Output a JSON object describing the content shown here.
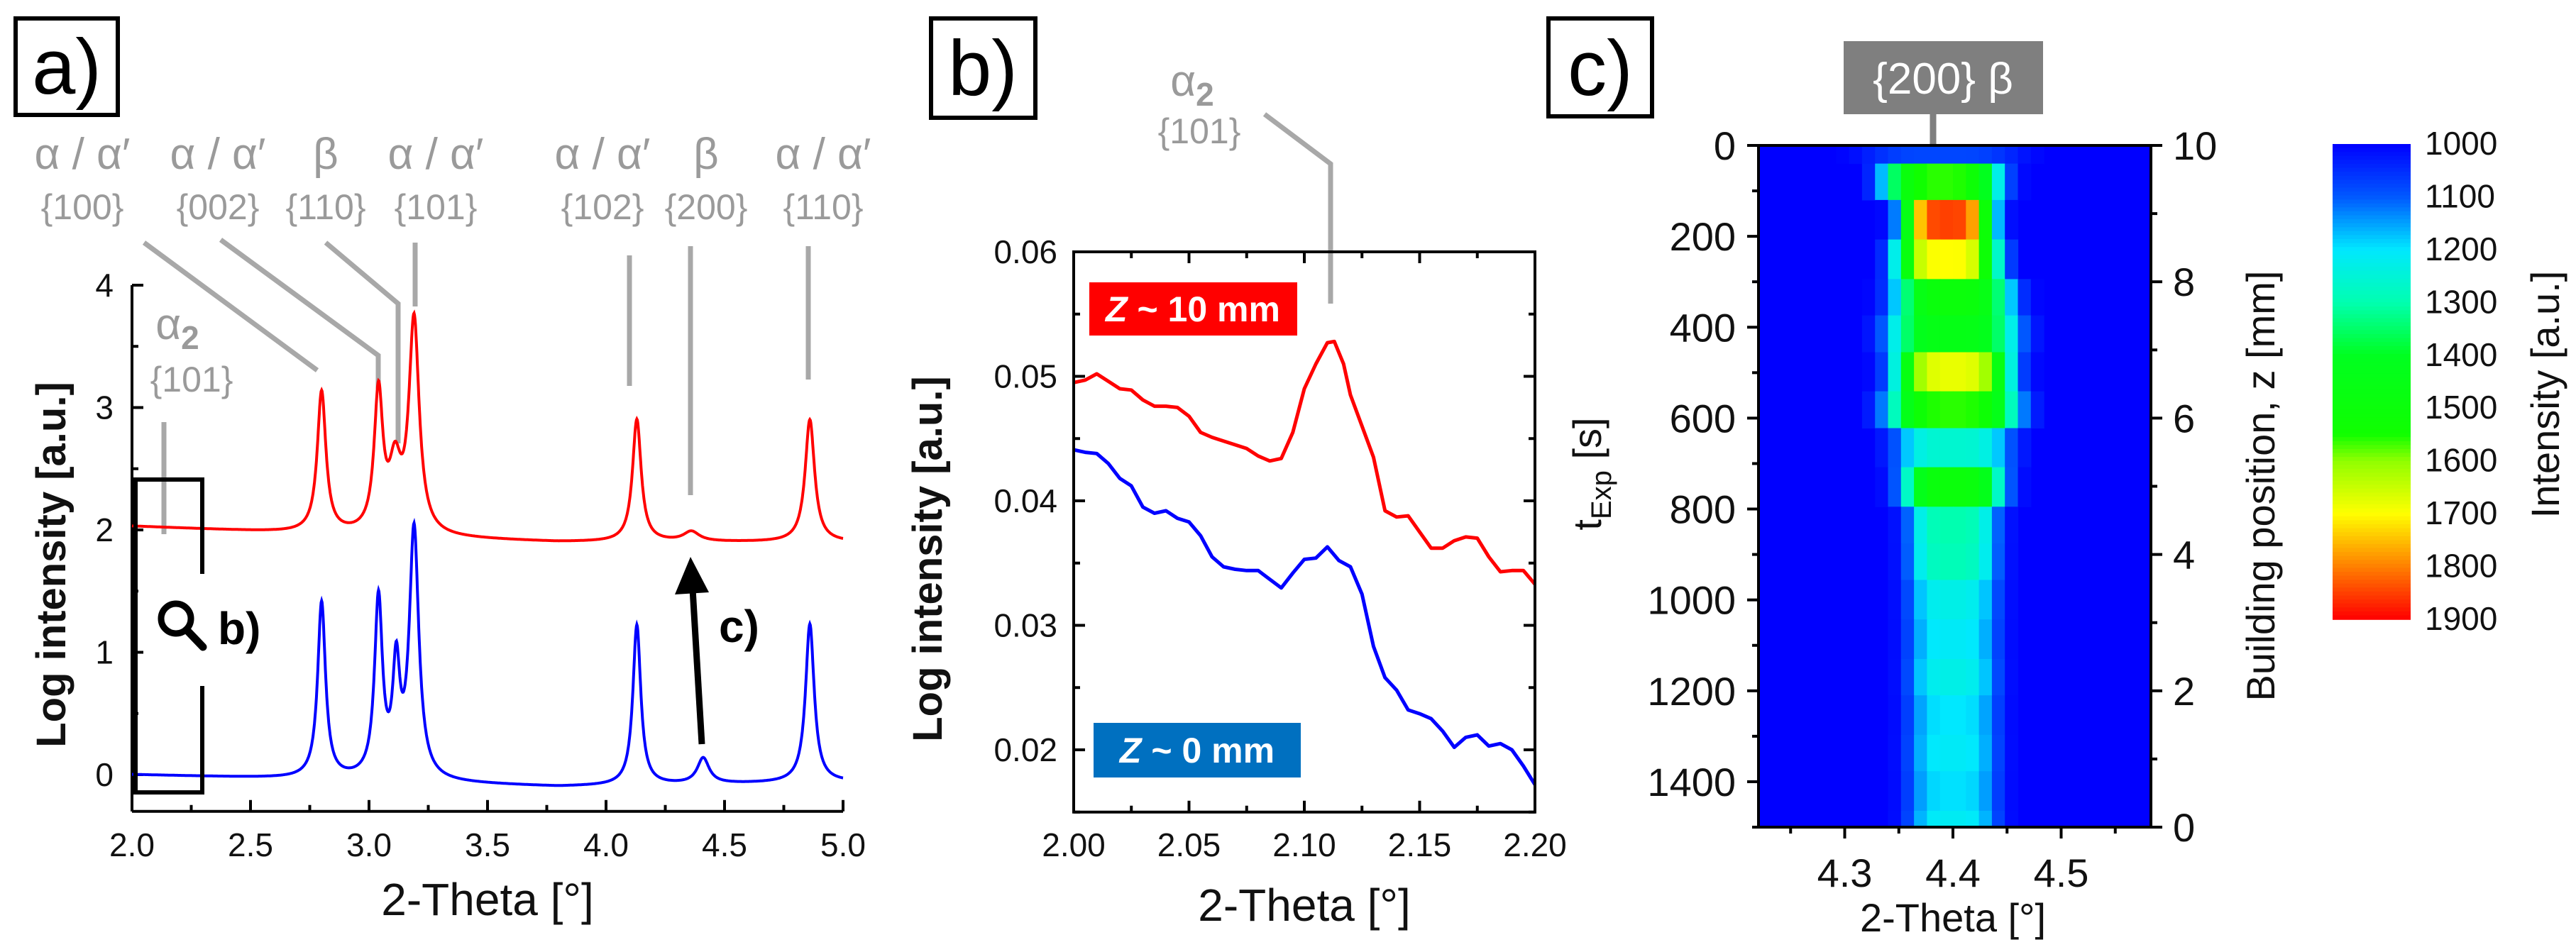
{
  "figure": {
    "panels": [
      "a)",
      "b)",
      "c)"
    ]
  },
  "chart_data": [
    {
      "id": "a",
      "type": "line",
      "xlabel": "2-Theta [°]",
      "ylabel": "Log intensity [a.u.]",
      "xlim": [
        2.0,
        5.0
      ],
      "ylim": [
        -0.3,
        4
      ],
      "xticks": [
        "2.0",
        "2.5",
        "3.0",
        "3.5",
        "4.0",
        "4.5",
        "5.0"
      ],
      "yticks": [
        "0",
        "1",
        "2",
        "3",
        "4"
      ],
      "peak_labels": [
        {
          "phase": "α / α′",
          "plane": "{100}"
        },
        {
          "phase": "α / α′",
          "plane": "{002}"
        },
        {
          "phase": "β",
          "plane": "{110}"
        },
        {
          "phase": "α / α′",
          "plane": "{101}"
        },
        {
          "phase": "α / α′",
          "plane": "{102}"
        },
        {
          "phase": "β",
          "plane": "{200}"
        },
        {
          "phase": "α / α′",
          "plane": "{110}"
        }
      ],
      "alpha2_label": {
        "phase": "α",
        "sub": "2",
        "plane": "{101}"
      },
      "zoom_label": "b)",
      "arrow_label": "c)",
      "series": [
        {
          "name": "Z ~ 10 mm",
          "color": "#ff0000",
          "baseline": [
            [
              2.0,
              2.03
            ],
            [
              3.0,
              1.95
            ],
            [
              3.8,
              1.9
            ],
            [
              5.0,
              1.9
            ]
          ],
          "peaks": [
            {
              "x": 2.8,
              "h": 3.12,
              "w": 0.022
            },
            {
              "x": 3.04,
              "h": 3.08,
              "w": 0.022
            },
            {
              "x": 3.11,
              "h": 2.45,
              "w": 0.03
            },
            {
              "x": 3.19,
              "h": 3.68,
              "w": 0.026
            },
            {
              "x": 4.13,
              "h": 2.9,
              "w": 0.022
            },
            {
              "x": 4.36,
              "h": 1.98,
              "w": 0.04
            },
            {
              "x": 4.86,
              "h": 2.9,
              "w": 0.024
            }
          ]
        },
        {
          "name": "Z ~ 0 mm",
          "color": "#0000ff",
          "baseline": [
            [
              2.0,
              0.0
            ],
            [
              3.0,
              -0.05
            ],
            [
              3.8,
              -0.1
            ],
            [
              5.0,
              -0.06
            ]
          ],
          "peaks": [
            {
              "x": 2.8,
              "h": 1.4,
              "w": 0.02
            },
            {
              "x": 3.04,
              "h": 1.4,
              "w": 0.02
            },
            {
              "x": 3.115,
              "h": 0.8,
              "w": 0.018
            },
            {
              "x": 3.19,
              "h": 1.98,
              "w": 0.024
            },
            {
              "x": 4.13,
              "h": 1.22,
              "w": 0.02
            },
            {
              "x": 4.41,
              "h": 0.13,
              "w": 0.03
            },
            {
              "x": 4.86,
              "h": 1.23,
              "w": 0.022
            }
          ]
        }
      ]
    },
    {
      "id": "b",
      "type": "line",
      "xlabel": "2-Theta [°]",
      "ylabel": "Log intensity [a.u.]",
      "xlim": [
        2.0,
        2.2
      ],
      "ylim": [
        0.015,
        0.06
      ],
      "xticks": [
        "2.00",
        "2.05",
        "2.10",
        "2.15",
        "2.20"
      ],
      "yticks": [
        "0.02",
        "0.03",
        "0.04",
        "0.05",
        "0.06"
      ],
      "annotation": {
        "phase": "α",
        "sub": "2",
        "plane": "{101}"
      },
      "legend": [
        {
          "label_italic": "Z",
          "label": " ~ 10 mm",
          "color": "#ff0000"
        },
        {
          "label_italic": "Z",
          "label": " ~ 0 mm",
          "color": "#0070c0"
        }
      ],
      "series": [
        {
          "name": "Z ~ 10 mm",
          "color": "#ff0000",
          "points": [
            [
              2.0,
              0.0495
            ],
            [
              2.005,
              0.0497
            ],
            [
              2.01,
              0.0502
            ],
            [
              2.015,
              0.0496
            ],
            [
              2.02,
              0.049
            ],
            [
              2.025,
              0.0489
            ],
            [
              2.03,
              0.0481
            ],
            [
              2.035,
              0.0476
            ],
            [
              2.04,
              0.0476
            ],
            [
              2.045,
              0.0475
            ],
            [
              2.05,
              0.0468
            ],
            [
              2.055,
              0.0455
            ],
            [
              2.06,
              0.0451
            ],
            [
              2.065,
              0.0448
            ],
            [
              2.07,
              0.0445
            ],
            [
              2.075,
              0.0442
            ],
            [
              2.08,
              0.0436
            ],
            [
              2.085,
              0.0432
            ],
            [
              2.09,
              0.0434
            ],
            [
              2.095,
              0.0455
            ],
            [
              2.1,
              0.049
            ],
            [
              2.105,
              0.051
            ],
            [
              2.11,
              0.0527
            ],
            [
              2.113,
              0.0528
            ],
            [
              2.117,
              0.051
            ],
            [
              2.12,
              0.0485
            ],
            [
              2.125,
              0.046
            ],
            [
              2.13,
              0.0435
            ],
            [
              2.135,
              0.0392
            ],
            [
              2.14,
              0.0387
            ],
            [
              2.145,
              0.0388
            ],
            [
              2.15,
              0.0375
            ],
            [
              2.155,
              0.0362
            ],
            [
              2.16,
              0.0362
            ],
            [
              2.165,
              0.0368
            ],
            [
              2.17,
              0.0371
            ],
            [
              2.175,
              0.037
            ],
            [
              2.18,
              0.0355
            ],
            [
              2.185,
              0.0343
            ],
            [
              2.19,
              0.0344
            ],
            [
              2.195,
              0.0344
            ],
            [
              2.2,
              0.0333
            ]
          ]
        },
        {
          "name": "Z ~ 0 mm",
          "color": "#0000ff",
          "points": [
            [
              2.0,
              0.0441
            ],
            [
              2.005,
              0.0439
            ],
            [
              2.01,
              0.0438
            ],
            [
              2.015,
              0.043
            ],
            [
              2.02,
              0.0418
            ],
            [
              2.025,
              0.0412
            ],
            [
              2.03,
              0.0395
            ],
            [
              2.035,
              0.039
            ],
            [
              2.04,
              0.0392
            ],
            [
              2.045,
              0.0386
            ],
            [
              2.05,
              0.0383
            ],
            [
              2.055,
              0.0372
            ],
            [
              2.06,
              0.0355
            ],
            [
              2.065,
              0.0347
            ],
            [
              2.07,
              0.0345
            ],
            [
              2.075,
              0.0344
            ],
            [
              2.08,
              0.0344
            ],
            [
              2.085,
              0.0337
            ],
            [
              2.09,
              0.033
            ],
            [
              2.095,
              0.0342
            ],
            [
              2.1,
              0.0353
            ],
            [
              2.105,
              0.0354
            ],
            [
              2.11,
              0.0363
            ],
            [
              2.115,
              0.0352
            ],
            [
              2.12,
              0.0347
            ],
            [
              2.125,
              0.0325
            ],
            [
              2.13,
              0.0283
            ],
            [
              2.135,
              0.0258
            ],
            [
              2.14,
              0.0248
            ],
            [
              2.145,
              0.0232
            ],
            [
              2.15,
              0.0229
            ],
            [
              2.155,
              0.0225
            ],
            [
              2.16,
              0.0215
            ],
            [
              2.165,
              0.0202
            ],
            [
              2.17,
              0.021
            ],
            [
              2.175,
              0.0212
            ],
            [
              2.18,
              0.0203
            ],
            [
              2.185,
              0.0205
            ],
            [
              2.19,
              0.02
            ],
            [
              2.195,
              0.0187
            ],
            [
              2.2,
              0.0172
            ]
          ]
        }
      ]
    },
    {
      "id": "c",
      "type": "heatmap",
      "xlabel": "2-Theta [°]",
      "ylabel_left": {
        "main": "t",
        "sub": "Exp",
        "unit": " [s]"
      },
      "ylabel_right": "Building position, z [mm]",
      "colorbar_label": "Intensity [a.u.]",
      "annotation": "{200} β",
      "xlim": [
        4.22,
        4.585
      ],
      "ylim_left": [
        0,
        1500
      ],
      "ylim_right": [
        10,
        0
      ],
      "xticks": [
        "4.3",
        "4.4",
        "4.5"
      ],
      "yticks_left": [
        "0",
        "200",
        "400",
        "600",
        "800",
        "1000",
        "1200",
        "1400"
      ],
      "yticks_right": [
        "0",
        "2",
        "4",
        "6",
        "8",
        "10"
      ],
      "colorbar_ticks": [
        "1000",
        "1100",
        "1200",
        "1300",
        "1400",
        "1500",
        "1600",
        "1700",
        "1800",
        "1900"
      ],
      "colorscale": [
        [
          1000,
          "#0000ff"
        ],
        [
          1100,
          "#0058ff"
        ],
        [
          1200,
          "#00e8ff"
        ],
        [
          1300,
          "#00ffb0"
        ],
        [
          1400,
          "#00ff20"
        ],
        [
          1550,
          "#10ff00"
        ],
        [
          1600,
          "#90ff00"
        ],
        [
          1700,
          "#ffff00"
        ],
        [
          1800,
          "#ff8000"
        ],
        [
          1900,
          "#ff0000"
        ]
      ],
      "rows": [
        {
          "t": [
            0,
            40
          ],
          "peak": 1080,
          "center": 4.39,
          "sigma": 0.06
        },
        {
          "t": [
            40,
            120
          ],
          "peak": 1560,
          "center": 4.39,
          "sigma": 0.045
        },
        {
          "t": [
            120,
            207
          ],
          "peak": 1850,
          "center": 4.395,
          "sigma": 0.035
        },
        {
          "t": [
            207,
            294
          ],
          "peak": 1700,
          "center": 4.395,
          "sigma": 0.04
        },
        {
          "t": [
            294,
            374
          ],
          "peak": 1500,
          "center": 4.4,
          "sigma": 0.045
        },
        {
          "t": [
            374,
            455
          ],
          "peak": 1450,
          "center": 4.4,
          "sigma": 0.05
        },
        {
          "t": [
            455,
            541
          ],
          "peak": 1680,
          "center": 4.4,
          "sigma": 0.045
        },
        {
          "t": [
            541,
            622
          ],
          "peak": 1560,
          "center": 4.4,
          "sigma": 0.05
        },
        {
          "t": [
            622,
            708
          ],
          "peak": 1260,
          "center": 4.4,
          "sigma": 0.045
        },
        {
          "t": [
            708,
            795
          ],
          "peak": 1500,
          "center": 4.4,
          "sigma": 0.04
        },
        {
          "t": [
            795,
            876
          ],
          "peak": 1300,
          "center": 4.4,
          "sigma": 0.035
        },
        {
          "t": [
            876,
            956
          ],
          "peak": 1290,
          "center": 4.4,
          "sigma": 0.035
        },
        {
          "t": [
            956,
            1043
          ],
          "peak": 1230,
          "center": 4.4,
          "sigma": 0.035
        },
        {
          "t": [
            1043,
            1130
          ],
          "peak": 1210,
          "center": 4.4,
          "sigma": 0.035
        },
        {
          "t": [
            1130,
            1210
          ],
          "peak": 1230,
          "center": 4.4,
          "sigma": 0.035
        },
        {
          "t": [
            1210,
            1297
          ],
          "peak": 1200,
          "center": 4.4,
          "sigma": 0.035
        },
        {
          "t": [
            1297,
            1377
          ],
          "peak": 1210,
          "center": 4.4,
          "sigma": 0.035
        },
        {
          "t": [
            1377,
            1464
          ],
          "peak": 1195,
          "center": 4.4,
          "sigma": 0.035
        },
        {
          "t": [
            1464,
            1500
          ],
          "peak": 1215,
          "center": 4.4,
          "sigma": 0.035
        }
      ]
    }
  ]
}
